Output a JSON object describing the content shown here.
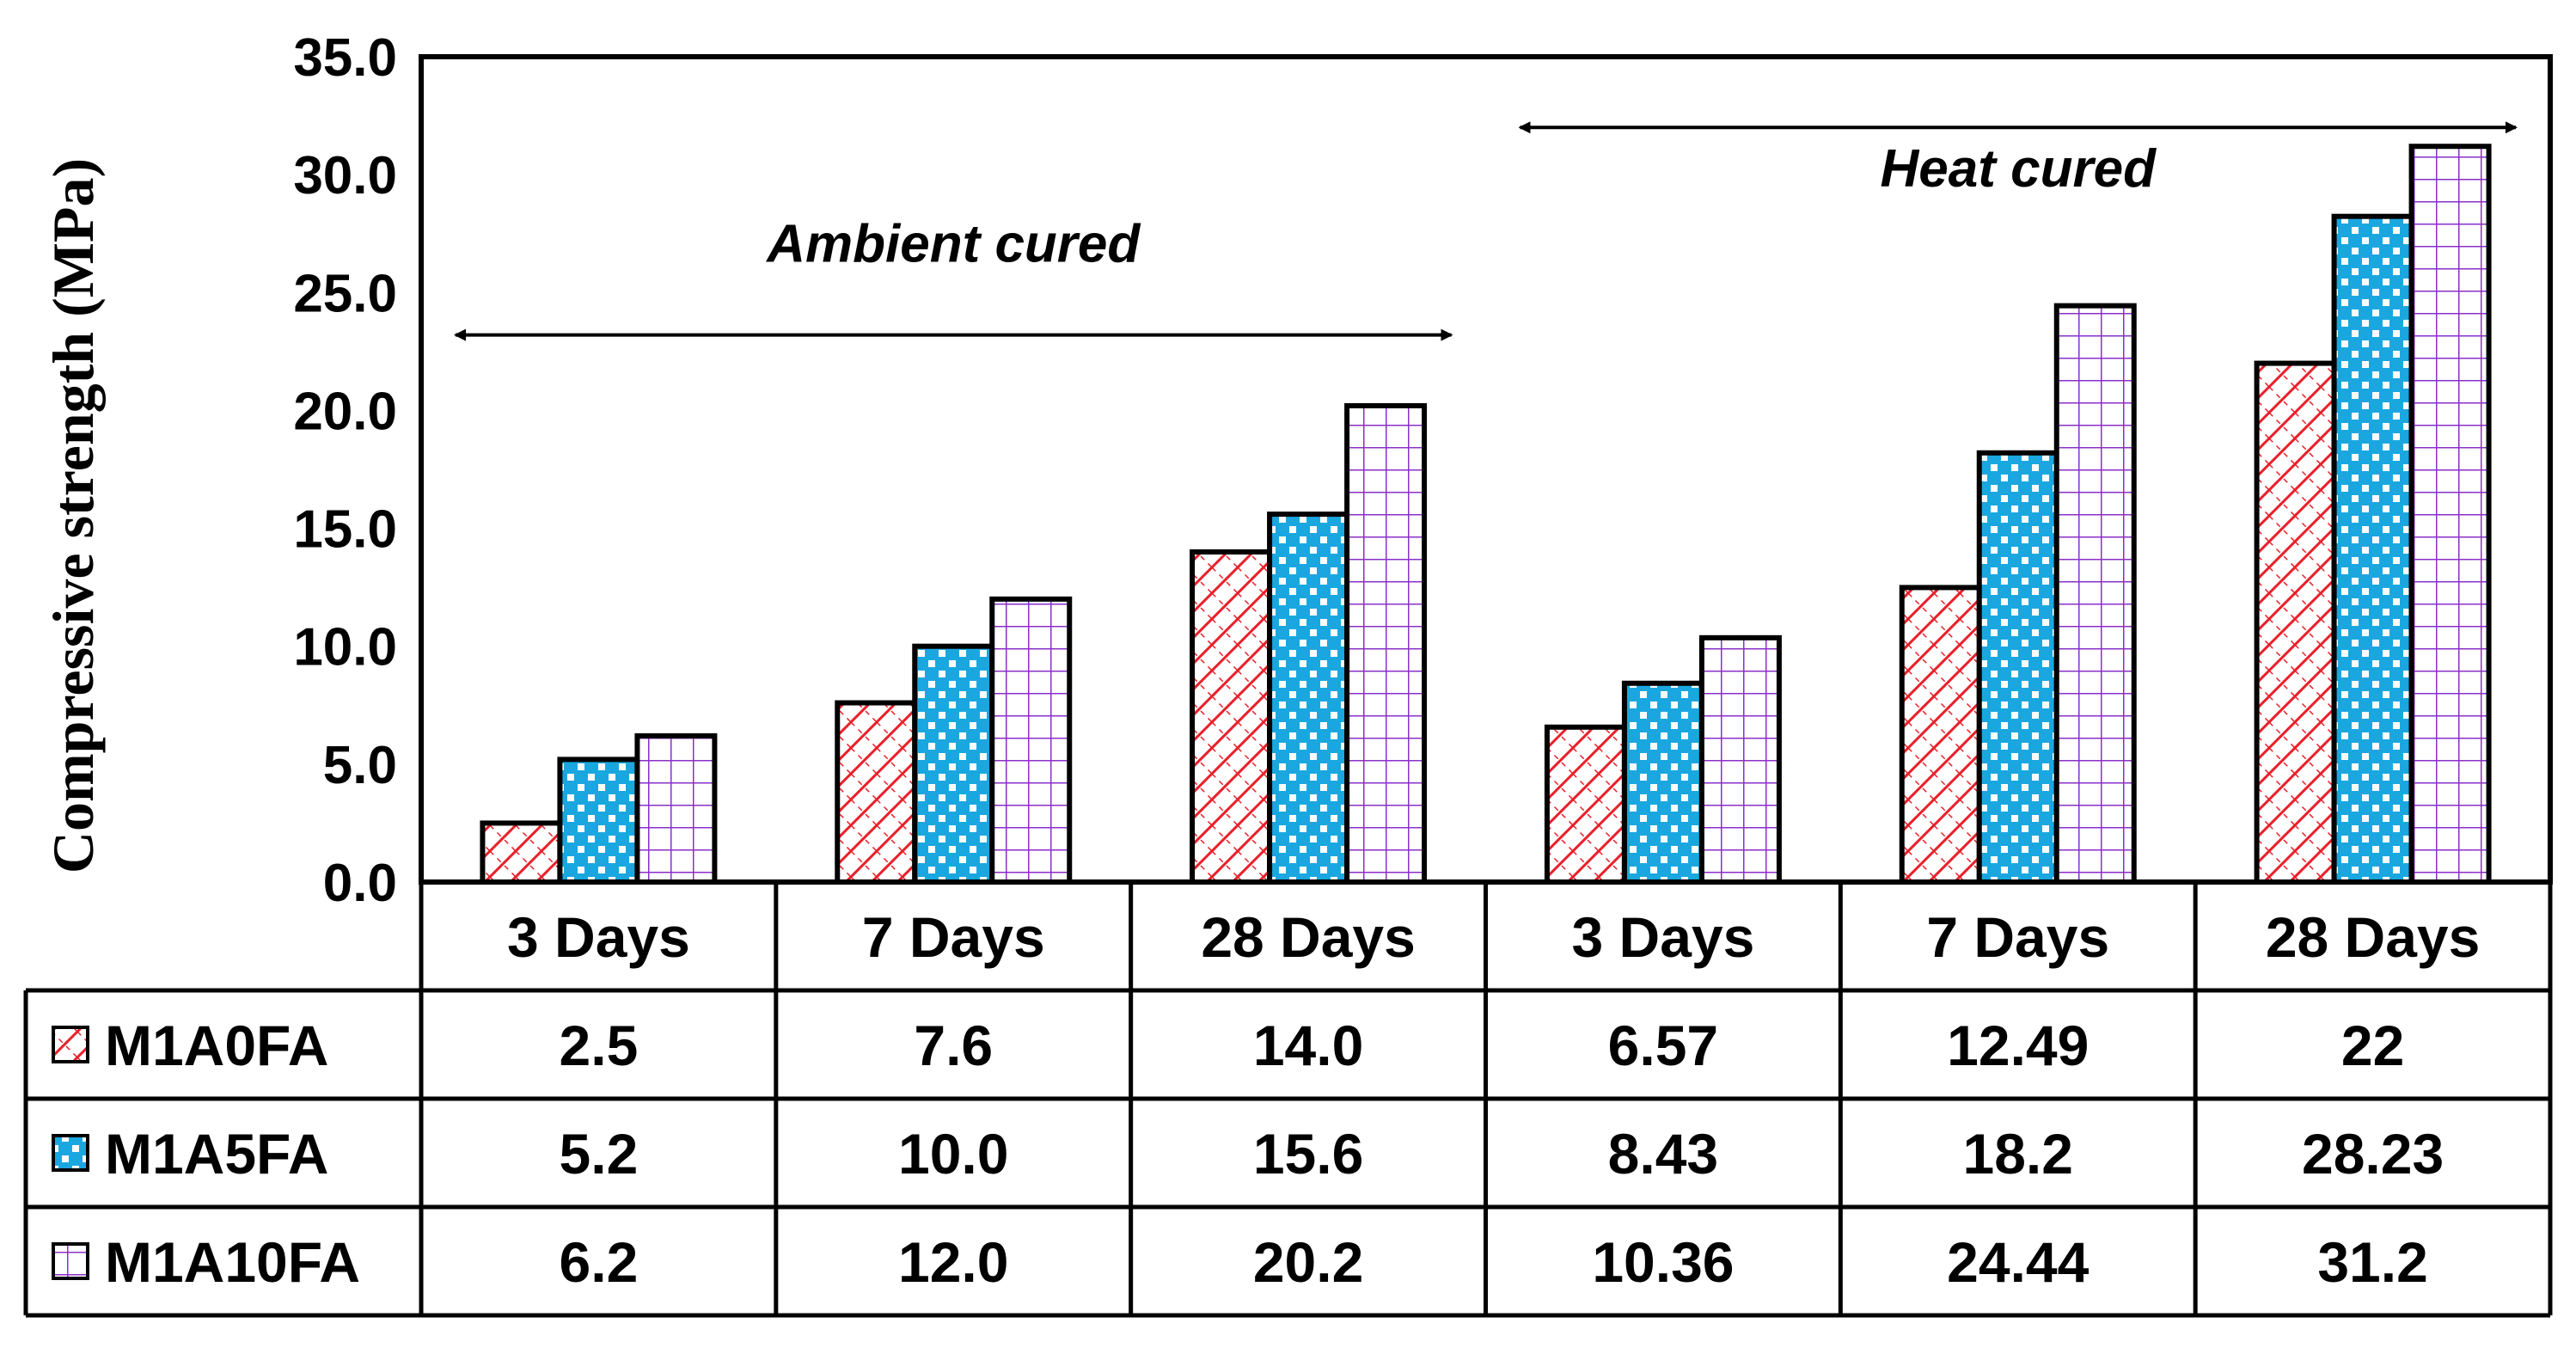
{
  "chart_data": {
    "type": "bar",
    "title": "",
    "xlabel": "",
    "ylabel": "Compressive strength (MPa)",
    "ylim": [
      0,
      35
    ],
    "yticks": [
      "0.0",
      "5.0",
      "10.0",
      "15.0",
      "20.0",
      "25.0",
      "30.0",
      "35.0"
    ],
    "categories": [
      "3 Days",
      "7 Days",
      "28 Days",
      "3 Days",
      "7 Days",
      "28 Days"
    ],
    "series": [
      {
        "name": "M1A0FA",
        "pattern": "diagonal-hatch",
        "color": "#e8202a",
        "values": [
          2.5,
          7.6,
          14.0,
          6.57,
          12.49,
          22
        ],
        "labels": [
          "2.5",
          "7.6",
          "14.0",
          "6.57",
          "12.49",
          "22"
        ]
      },
      {
        "name": "M1A5FA",
        "pattern": "checker",
        "color": "#1aa7e0",
        "values": [
          5.2,
          10.0,
          15.6,
          8.43,
          18.2,
          28.23
        ],
        "labels": [
          "5.2",
          "10.0",
          "15.6",
          "8.43",
          "18.2",
          "28.23"
        ]
      },
      {
        "name": "M1A10FA",
        "pattern": "grid",
        "color": "#8b2fc9",
        "values": [
          6.2,
          12.0,
          20.2,
          10.36,
          24.44,
          31.2
        ],
        "labels": [
          "6.2",
          "12.0",
          "20.2",
          "10.36",
          "24.44",
          "31.2"
        ]
      }
    ],
    "annotations": [
      {
        "text": "Ambient cured",
        "spans_categories": [
          0,
          2
        ]
      },
      {
        "text": "Heat cured",
        "spans_categories": [
          3,
          5
        ]
      }
    ],
    "legend": "data-table-left"
  }
}
